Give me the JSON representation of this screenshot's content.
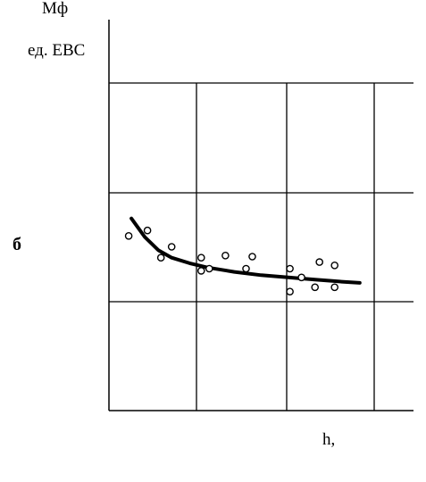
{
  "chart_data": {
    "type": "scatter",
    "ylabel": [
      "Мф",
      "ед. ЕВС"
    ],
    "xlabel": "h,",
    "panel_label": "б",
    "grid": true,
    "xlim": [
      0,
      3.4
    ],
    "ylim": [
      0,
      3
    ],
    "points": [
      {
        "x": 0.22,
        "y": 1.6
      },
      {
        "x": 0.43,
        "y": 1.65
      },
      {
        "x": 0.58,
        "y": 1.4
      },
      {
        "x": 0.7,
        "y": 1.5
      },
      {
        "x": 1.03,
        "y": 1.4
      },
      {
        "x": 1.03,
        "y": 1.28
      },
      {
        "x": 1.12,
        "y": 1.3
      },
      {
        "x": 1.3,
        "y": 1.42
      },
      {
        "x": 1.53,
        "y": 1.3
      },
      {
        "x": 1.6,
        "y": 1.41
      },
      {
        "x": 2.02,
        "y": 1.3
      },
      {
        "x": 2.02,
        "y": 1.09
      },
      {
        "x": 2.15,
        "y": 1.22
      },
      {
        "x": 2.3,
        "y": 1.13
      },
      {
        "x": 2.35,
        "y": 1.36
      },
      {
        "x": 2.52,
        "y": 1.33
      },
      {
        "x": 2.52,
        "y": 1.13
      }
    ],
    "trend": {
      "x": [
        0.25,
        0.4,
        0.55,
        0.7,
        0.9,
        1.1,
        1.4,
        1.7,
        2.0,
        2.3,
        2.6,
        2.8
      ],
      "y": [
        1.76,
        1.59,
        1.47,
        1.4,
        1.35,
        1.31,
        1.27,
        1.24,
        1.22,
        1.2,
        1.18,
        1.17
      ]
    },
    "colors": {
      "ink": "#000000",
      "background": "#ffffff"
    }
  }
}
